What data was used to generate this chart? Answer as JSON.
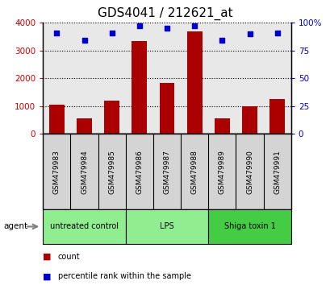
{
  "title": "GDS4041 / 212621_at",
  "samples": [
    "GSM479983",
    "GSM479984",
    "GSM479985",
    "GSM479986",
    "GSM479987",
    "GSM479988",
    "GSM479989",
    "GSM479990",
    "GSM479991"
  ],
  "counts": [
    1050,
    550,
    1200,
    3350,
    1850,
    3700,
    550,
    1000,
    1250
  ],
  "percentiles": [
    91,
    84,
    91,
    97,
    95,
    97,
    84,
    90,
    91
  ],
  "ylim_left": [
    0,
    4000
  ],
  "ylim_right": [
    0,
    100
  ],
  "yticks_left": [
    0,
    1000,
    2000,
    3000,
    4000
  ],
  "yticks_right": [
    0,
    25,
    50,
    75,
    100
  ],
  "yticklabels_right": [
    "0",
    "25",
    "50",
    "75",
    "100%"
  ],
  "bar_color": "#aa0000",
  "dot_color": "#0000cc",
  "groups": [
    {
      "label": "untreated control",
      "start": 0,
      "end": 3,
      "color_light": true
    },
    {
      "label": "LPS",
      "start": 3,
      "end": 6,
      "color_light": true
    },
    {
      "label": "Shiga toxin 1",
      "start": 6,
      "end": 9,
      "color_light": false
    }
  ],
  "group_color_light": "#90ee90",
  "group_color_dark": "#44cc44",
  "agent_label": "agent",
  "legend_count_label": "count",
  "legend_pct_label": "percentile rank within the sample",
  "tick_label_color_left": "#cc0000",
  "tick_label_color_right": "#0000cc",
  "title_fontsize": 11,
  "bar_width": 0.55,
  "sample_box_color": "#d4d4d4",
  "plot_bg_color": "#e8e8e8",
  "white": "#ffffff"
}
